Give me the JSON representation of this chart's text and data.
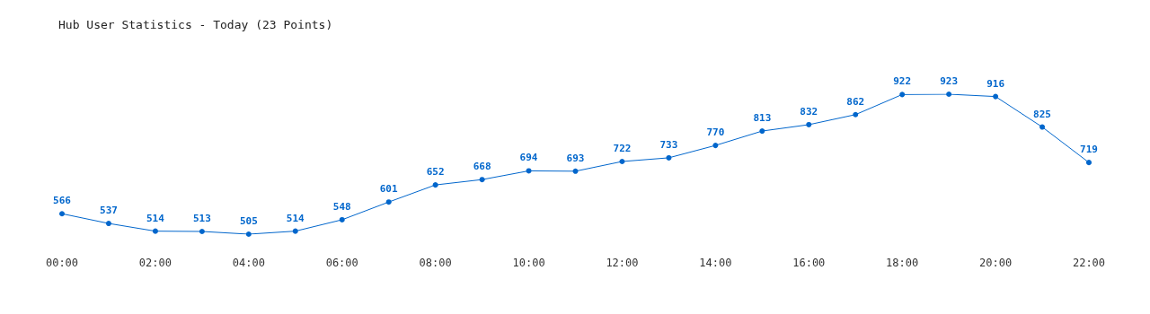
{
  "chart_data": {
    "type": "line",
    "title": "Hub User Statistics - Today (23 Points)",
    "categories": [
      "00:00",
      null,
      "02:00",
      null,
      "04:00",
      null,
      "06:00",
      null,
      "08:00",
      null,
      "10:00",
      null,
      "12:00",
      null,
      "14:00",
      null,
      "16:00",
      null,
      "18:00",
      null,
      "20:00",
      null,
      "22:00"
    ],
    "series": [
      {
        "color": "#0066cc",
        "values": [
          566,
          537,
          514,
          513,
          505,
          514,
          548,
          601,
          652,
          668,
          694,
          693,
          722,
          733,
          770,
          813,
          832,
          862,
          922,
          923,
          916,
          825,
          719
        ]
      }
    ],
    "data_labels": true,
    "marker": "circle",
    "line_style": "solid"
  }
}
